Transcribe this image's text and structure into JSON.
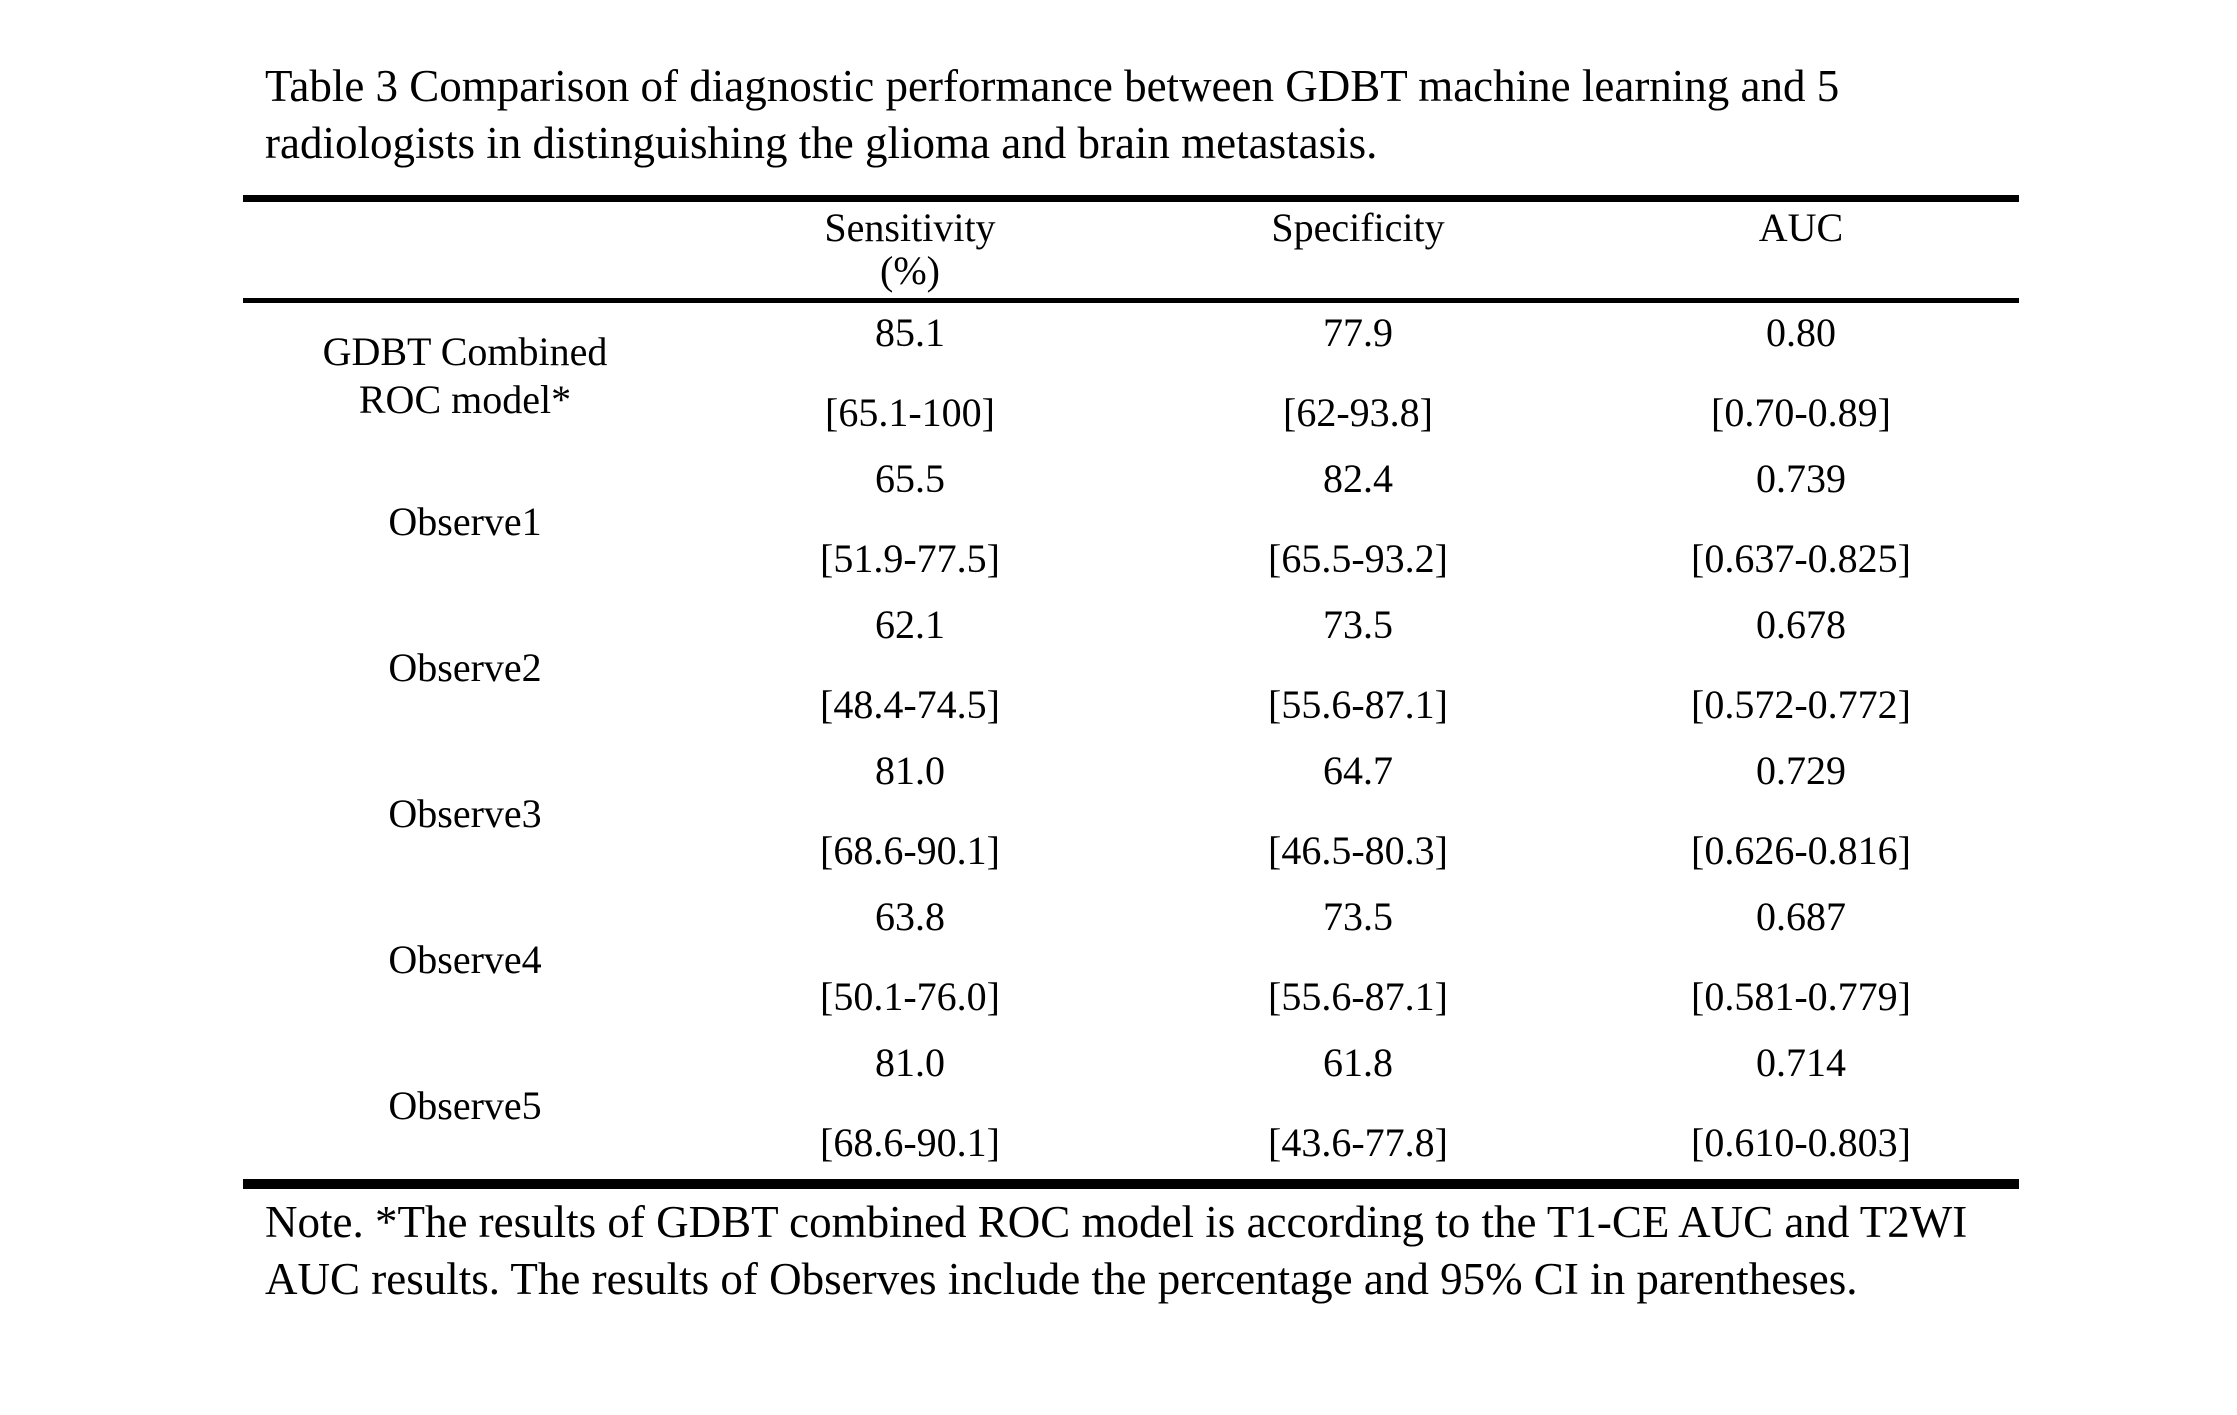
{
  "caption": "Table 3 Comparison of diagnostic performance between GDBT machine learning and 5 radiologists in distinguishing the glioma and brain metastasis.",
  "table": {
    "header": {
      "row_label": "",
      "sensitivity": "Sensitivity",
      "sensitivity_unit": "(%)",
      "specificity": "Specificity",
      "auc": "AUC"
    },
    "rows": [
      {
        "label_lines": [
          "GDBT Combined",
          "ROC model*"
        ],
        "sensitivity": {
          "value": "85.1",
          "ci": "[65.1-100]"
        },
        "specificity": {
          "value": "77.9",
          "ci": "[62-93.8]"
        },
        "auc": {
          "value": "0.80",
          "ci": "[0.70-0.89]"
        }
      },
      {
        "label_lines": [
          "Observe1"
        ],
        "sensitivity": {
          "value": "65.5",
          "ci": "[51.9-77.5]"
        },
        "specificity": {
          "value": "82.4",
          "ci": "[65.5-93.2]"
        },
        "auc": {
          "value": "0.739",
          "ci": "[0.637-0.825]"
        }
      },
      {
        "label_lines": [
          "Observe2"
        ],
        "sensitivity": {
          "value": "62.1",
          "ci": "[48.4-74.5]"
        },
        "specificity": {
          "value": "73.5",
          "ci": "[55.6-87.1]"
        },
        "auc": {
          "value": "0.678",
          "ci": "[0.572-0.772]"
        }
      },
      {
        "label_lines": [
          "Observe3"
        ],
        "sensitivity": {
          "value": "81.0",
          "ci": "[68.6-90.1]"
        },
        "specificity": {
          "value": "64.7",
          "ci": "[46.5-80.3]"
        },
        "auc": {
          "value": "0.729",
          "ci": "[0.626-0.816]"
        }
      },
      {
        "label_lines": [
          "Observe4"
        ],
        "sensitivity": {
          "value": "63.8",
          "ci": "[50.1-76.0]"
        },
        "specificity": {
          "value": "73.5",
          "ci": "[55.6-87.1]"
        },
        "auc": {
          "value": "0.687",
          "ci": "[0.581-0.779]"
        }
      },
      {
        "label_lines": [
          "Observe5"
        ],
        "sensitivity": {
          "value": "81.0",
          "ci": "[68.6-90.1]"
        },
        "specificity": {
          "value": "61.8",
          "ci": "[43.6-77.8]"
        },
        "auc": {
          "value": "0.714",
          "ci": "[0.610-0.803]"
        }
      }
    ]
  },
  "note": "Note. *The results of GDBT combined ROC model is according to the T1-CE AUC and T2WI AUC results. The results of Observes include the percentage and 95% CI in parentheses."
}
